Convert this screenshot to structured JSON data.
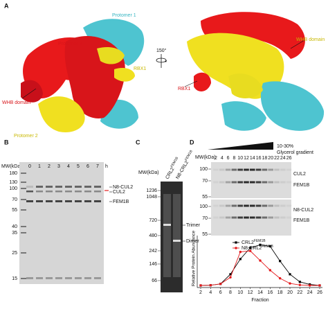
{
  "panels": {
    "a": {
      "label": "A",
      "left": {
        "protomer_1": "Protomer 1",
        "protomer_3": "Protomer 3",
        "rbx1": "RBX1",
        "whb": "WHB domain",
        "protomer_2": "Protomer 2"
      },
      "rotation": "150°",
      "right": {
        "whb": "WHB domain",
        "rbx1": "RBX1"
      }
    },
    "b": {
      "label": "B",
      "mw_title": "MW(kDa)",
      "mw": [
        180,
        130,
        100,
        70,
        55,
        40,
        35,
        25,
        15
      ],
      "lanes": [
        "0",
        "1",
        "2",
        "3",
        "4",
        "5",
        "6",
        "7",
        "h"
      ],
      "bands": [
        "N8-CUL2",
        "CUL2",
        "FEM1B"
      ]
    },
    "c": {
      "label": "C",
      "mw_title": "MW(kDa)",
      "mw": [
        1236,
        1048,
        720,
        480,
        242,
        146,
        66
      ],
      "lanes": [
        {
          "name": "CRL2",
          "sup": "FEM1B"
        },
        {
          "name": "N8-CRL2",
          "sup": "FEM1B"
        }
      ],
      "bands": [
        "Trimer",
        "Dimer"
      ]
    },
    "d": {
      "label": "D",
      "gradient": [
        "10-30%",
        "Glycerol gradient"
      ],
      "mw_title": "MW(kDa)",
      "fractions": [
        2,
        4,
        6,
        8,
        10,
        12,
        14,
        16,
        18,
        20,
        22,
        24,
        26
      ],
      "blot_top": {
        "mw": [
          100,
          70,
          55
        ],
        "bands": [
          "CUL2",
          "FEM1B"
        ]
      },
      "blot_bottom": {
        "mw": [
          100,
          70,
          55
        ],
        "bands": [
          "N8-CUL2",
          "FEM1B"
        ]
      }
    }
  },
  "chart_data": {
    "type": "line",
    "xlabel": "Fraction",
    "ylabel": "Relative Protein Abundance",
    "x": [
      2,
      4,
      6,
      8,
      10,
      12,
      14,
      16,
      18,
      20,
      22,
      24,
      26
    ],
    "xlim": [
      2,
      26
    ],
    "xticks": [
      2,
      4,
      6,
      8,
      10,
      12,
      14,
      16,
      18,
      20,
      22,
      24,
      26
    ],
    "ylim": [
      0,
      450
    ],
    "series": [
      {
        "name": "CRL2",
        "name_sup": "FEM1B",
        "color": "#000000",
        "marker": "square",
        "values": [
          0,
          2,
          15,
          110,
          260,
          370,
          400,
          385,
          240,
          110,
          35,
          10,
          0
        ]
      },
      {
        "name": "N8-CRL2",
        "name_sup": "FEM1B",
        "color": "#e41a1c",
        "marker": "circle",
        "values": [
          0,
          2,
          15,
          80,
          330,
          340,
          245,
          150,
          70,
          20,
          5,
          0,
          0
        ]
      }
    ]
  }
}
